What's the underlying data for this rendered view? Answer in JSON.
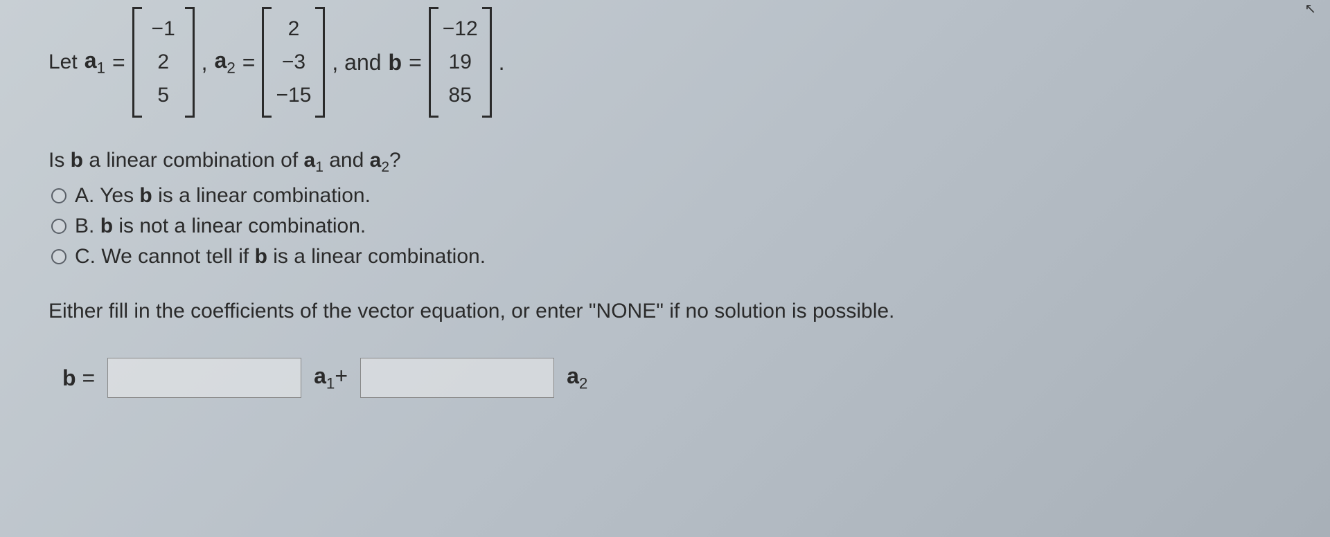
{
  "problem": {
    "let_text": "Let ",
    "a1_label": "a",
    "a1_sub": "1",
    "a2_label": "a",
    "a2_sub": "2",
    "b_label": "b",
    "eq": " = ",
    "comma": ", ",
    "and_text": ", and ",
    "period": ".",
    "a1_values": [
      "−1",
      "2",
      "5"
    ],
    "a2_values": [
      "2",
      "−3",
      "−15"
    ],
    "b_values": [
      "−12",
      "19",
      "85"
    ]
  },
  "question": {
    "text_1": "Is ",
    "text_b": "b",
    "text_2": " a linear combination of ",
    "text_a1": "a",
    "text_a1_sub": "1",
    "text_3": " and ",
    "text_a2": "a",
    "text_a2_sub": "2",
    "text_4": "?"
  },
  "options": {
    "a": {
      "label": "A. Yes ",
      "bold": "b",
      "rest": " is a linear combination."
    },
    "b": {
      "label": "B. ",
      "bold": "b",
      "rest": " is not a linear combination."
    },
    "c": {
      "label": "C. We cannot tell if ",
      "bold": "b",
      "rest": " is a linear combination."
    }
  },
  "instruction": "Either fill in the coefficients of the vector equation, or enter \"NONE\" if no solution is possible.",
  "answer": {
    "b_label": "b",
    "eq": " = ",
    "a1_label": "a",
    "a1_sub": "1",
    "plus": "+",
    "a2_label": "a",
    "a2_sub": "2"
  },
  "colors": {
    "text": "#2a2a2a",
    "border": "#888888",
    "radio_border": "#5a6068"
  }
}
